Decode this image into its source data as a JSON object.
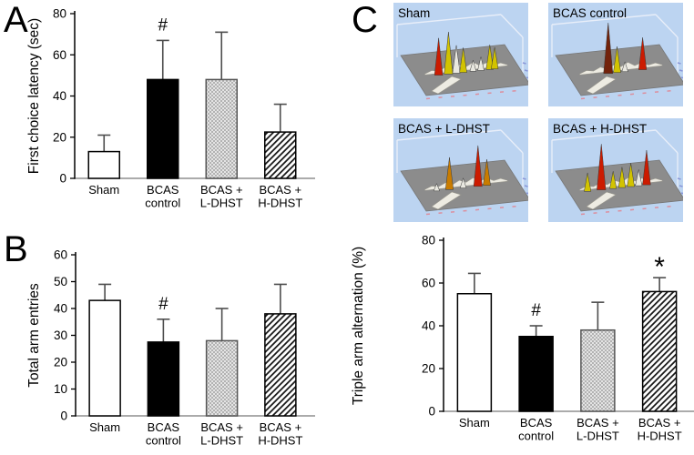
{
  "panels": {
    "a_label": "A",
    "b_label": "B",
    "c_label": "C"
  },
  "chart_data": [
    {
      "id": "first-choice-latency",
      "type": "bar",
      "title": "",
      "ylabel": "First choice latency (sec)",
      "ylim": [
        0,
        80
      ],
      "yticks": [
        0,
        20,
        40,
        60,
        80
      ],
      "grid": false,
      "categories": [
        "Sham",
        "BCAS\ncontrol",
        "BCAS +\nL-DHST",
        "BCAS +\nH-DHST"
      ],
      "values": [
        13,
        48,
        48,
        22.5
      ],
      "errors": [
        8,
        19,
        23,
        13.5
      ],
      "annotations": [
        "",
        "#",
        "",
        ""
      ],
      "bar_styles": [
        "open",
        "solid",
        "checker",
        "hatch"
      ]
    },
    {
      "id": "total-arm-entries",
      "type": "bar",
      "title": "",
      "ylabel": "Total arm entries",
      "ylim": [
        0,
        60
      ],
      "yticks": [
        0,
        10,
        20,
        30,
        40,
        50,
        60
      ],
      "grid": false,
      "categories": [
        "Sham",
        "BCAS\ncontrol",
        "BCAS +\nL-DHST",
        "BCAS +\nH-DHST"
      ],
      "values": [
        43,
        27.5,
        28,
        38
      ],
      "errors": [
        6,
        8.5,
        12,
        11
      ],
      "annotations": [
        "",
        "#",
        "",
        ""
      ],
      "bar_styles": [
        "open",
        "solid",
        "checker",
        "hatch"
      ]
    },
    {
      "id": "triple-arm-alternation",
      "type": "bar",
      "title": "",
      "ylabel": "Triple arm alternation (%)",
      "ylim": [
        0,
        80
      ],
      "yticks": [
        0,
        20,
        40,
        60,
        80
      ],
      "grid": false,
      "categories": [
        "Sham",
        "BCAS\ncontrol",
        "BCAS +\nL-DHST",
        "BCAS +\nH-DHST"
      ],
      "values": [
        55,
        35,
        38,
        56
      ],
      "errors": [
        9.5,
        5,
        13,
        6.5
      ],
      "annotations": [
        "",
        "#",
        "",
        "*"
      ],
      "bar_styles": [
        "open",
        "solid",
        "checker",
        "hatch"
      ]
    }
  ],
  "maze_images": {
    "bg_color": "#bcd4f1",
    "floor_color": "#8c8c8c",
    "peak_colors": {
      "red": "#cc1b00",
      "darkred": "#73220a",
      "yellow": "#d2c300",
      "orange": "#c97c00",
      "white": "#e9e8e0"
    },
    "items": [
      {
        "label": "Sham",
        "peaks": [
          {
            "x": 0.2,
            "h": 0.6,
            "c": "red"
          },
          {
            "x": 0.3,
            "h": 0.68,
            "c": "yellow"
          },
          {
            "x": 0.38,
            "h": 0.45,
            "c": "white"
          },
          {
            "x": 0.45,
            "h": 0.4,
            "c": "yellow"
          },
          {
            "x": 0.55,
            "h": 0.18,
            "c": "white"
          },
          {
            "x": 0.63,
            "h": 0.22,
            "c": "white"
          },
          {
            "x": 0.72,
            "h": 0.4,
            "c": "yellow"
          },
          {
            "x": 0.77,
            "h": 0.35,
            "c": "yellow"
          }
        ]
      },
      {
        "label": "BCAS control",
        "peaks": [
          {
            "x": 0.35,
            "h": 0.82,
            "c": "darkred"
          },
          {
            "x": 0.44,
            "h": 0.42,
            "c": "yellow"
          },
          {
            "x": 0.52,
            "h": 0.16,
            "c": "white"
          },
          {
            "x": 0.7,
            "h": 0.52,
            "c": "red"
          }
        ]
      },
      {
        "label": "BCAS + L-DHST",
        "peaks": [
          {
            "x": 0.18,
            "h": 0.12,
            "c": "white"
          },
          {
            "x": 0.31,
            "h": 0.52,
            "c": "orange"
          },
          {
            "x": 0.45,
            "h": 0.16,
            "c": "white"
          },
          {
            "x": 0.6,
            "h": 0.66,
            "c": "red"
          },
          {
            "x": 0.69,
            "h": 0.42,
            "c": "orange"
          }
        ]
      },
      {
        "label": "BCAS + H-DHST",
        "peaks": [
          {
            "x": 0.14,
            "h": 0.3,
            "c": "yellow"
          },
          {
            "x": 0.28,
            "h": 0.74,
            "c": "red"
          },
          {
            "x": 0.4,
            "h": 0.28,
            "c": "yellow"
          },
          {
            "x": 0.49,
            "h": 0.33,
            "c": "yellow"
          },
          {
            "x": 0.58,
            "h": 0.38,
            "c": "yellow"
          },
          {
            "x": 0.66,
            "h": 0.26,
            "c": "white"
          },
          {
            "x": 0.74,
            "h": 0.56,
            "c": "red"
          }
        ]
      }
    ]
  }
}
